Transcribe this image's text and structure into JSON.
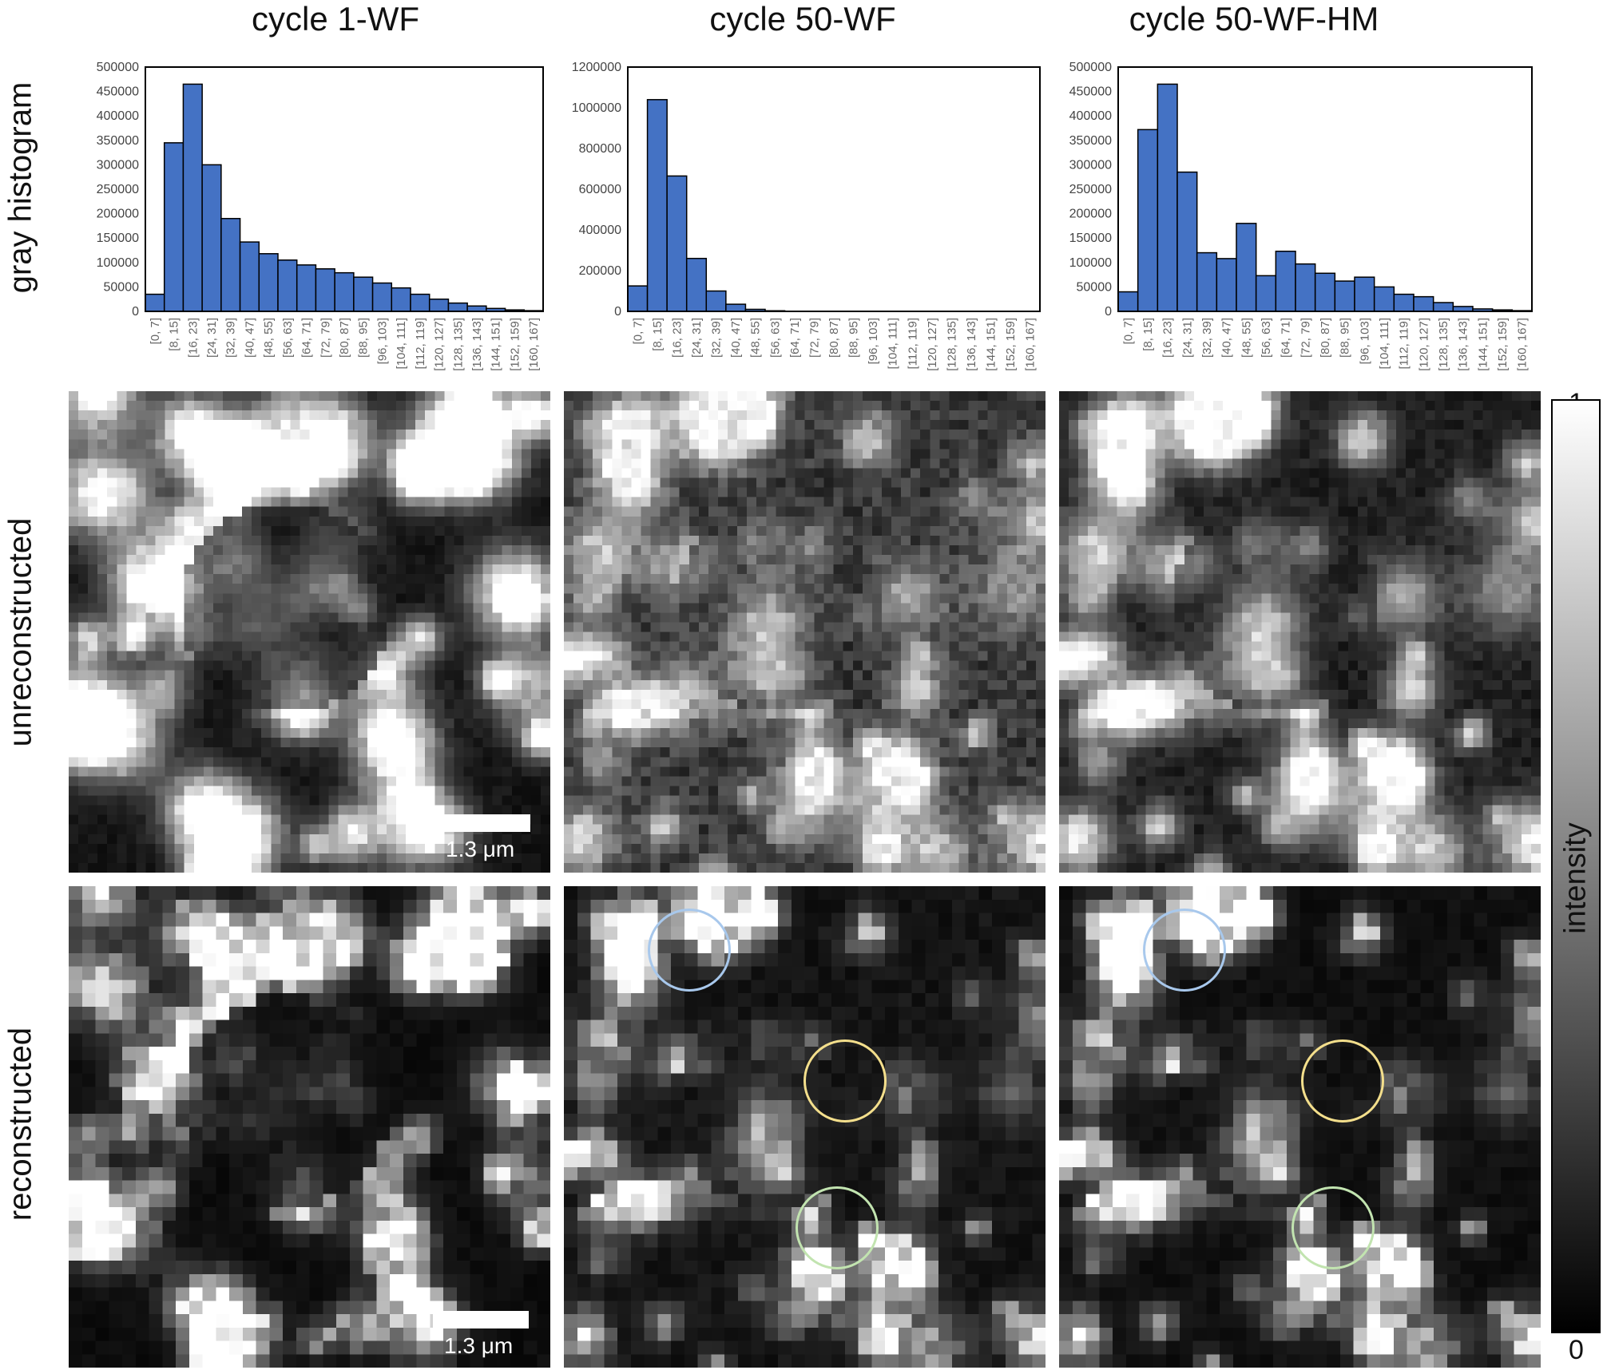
{
  "columns": [
    {
      "title": "cycle 1-WF"
    },
    {
      "title": "cycle 50-WF"
    },
    {
      "title": "cycle 50-WF-HM"
    }
  ],
  "rows": {
    "histogram": "gray histogram",
    "unreconstructed": "unreconstructed",
    "reconstructed": "reconstructed"
  },
  "scalebar": {
    "label": "1.3 μm"
  },
  "colorbar": {
    "max_label": "1",
    "min_label": "0",
    "title": "intensity"
  },
  "roi_colors": {
    "blue": "#a8c8ec",
    "yellow": "#f4df8c",
    "green": "#c2e4b0"
  },
  "bar_color": "#4472c4",
  "chart_data": [
    {
      "type": "bar",
      "title": "cycle 1-WF",
      "categories": [
        "[0, 7]",
        "[8, 15]",
        "[16, 23]",
        "[24, 31]",
        "[32, 39]",
        "[40, 47]",
        "[48, 55]",
        "[56, 63]",
        "[64, 71]",
        "[72, 79]",
        "[80, 87]",
        "[88, 95]",
        "[96, 103]",
        "[104, 111]",
        "[112, 119]",
        "[120, 127]",
        "[128, 135]",
        "[136, 143]",
        "[144, 151]",
        "[152, 159]",
        "[160, 167]"
      ],
      "values": [
        35000,
        345000,
        465000,
        300000,
        190000,
        142000,
        118000,
        105000,
        95000,
        87000,
        79000,
        70000,
        58000,
        48000,
        35000,
        25000,
        17000,
        11000,
        6000,
        3000,
        1500
      ],
      "ylim": [
        0,
        500000
      ],
      "yticks": [
        0,
        50000,
        100000,
        150000,
        200000,
        250000,
        300000,
        350000,
        400000,
        450000,
        500000
      ],
      "grid": false
    },
    {
      "type": "bar",
      "title": "cycle 50-WF",
      "categories": [
        "[0, 7]",
        "[8, 15]",
        "[16, 23]",
        "[24, 31]",
        "[32, 39]",
        "[40, 47]",
        "[48, 55]",
        "[56, 63]",
        "[64, 71]",
        "[72, 79]",
        "[80, 87]",
        "[88, 95]",
        "[96, 103]",
        "[104, 111]",
        "[112, 119]",
        "[120, 127]",
        "[128, 135]",
        "[136, 143]",
        "[144, 151]",
        "[152, 159]",
        "[160, 167]"
      ],
      "values": [
        125000,
        1040000,
        665000,
        260000,
        100000,
        35000,
        10000,
        3000,
        1000,
        500,
        300,
        200,
        100,
        100,
        50,
        50,
        50,
        20,
        20,
        10,
        10
      ],
      "ylim": [
        0,
        1200000
      ],
      "yticks": [
        0,
        200000,
        400000,
        600000,
        800000,
        1000000,
        1200000
      ],
      "grid": false
    },
    {
      "type": "bar",
      "title": "cycle 50-WF-HM",
      "categories": [
        "[0, 7]",
        "[8, 15]",
        "[16, 23]",
        "[24, 31]",
        "[32, 39]",
        "[40, 47]",
        "[48, 55]",
        "[56, 63]",
        "[64, 71]",
        "[72, 79]",
        "[80, 87]",
        "[88, 95]",
        "[96, 103]",
        "[104, 111]",
        "[112, 119]",
        "[120, 127]",
        "[128, 135]",
        "[136, 143]",
        "[144, 151]",
        "[152, 159]",
        "[160, 167]"
      ],
      "values": [
        40000,
        372000,
        465000,
        285000,
        120000,
        108000,
        180000,
        73000,
        123000,
        97000,
        78000,
        62000,
        70000,
        50000,
        35000,
        30000,
        18000,
        10000,
        5000,
        3000,
        1500
      ],
      "ylim": [
        0,
        500000
      ],
      "yticks": [
        0,
        50000,
        100000,
        150000,
        200000,
        250000,
        300000,
        350000,
        400000,
        450000,
        500000
      ],
      "grid": false
    }
  ]
}
